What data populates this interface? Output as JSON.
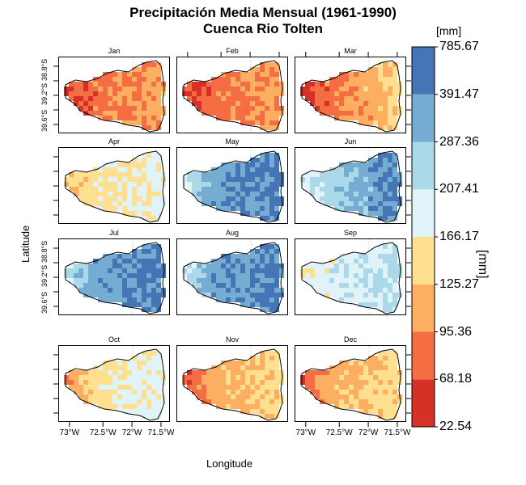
{
  "chart_data": {
    "type": "heatmap",
    "title_line1": "Precipitación Media Mensual (1961-1990)",
    "title_line2": "Cuenca Rio Tolten",
    "xlabel": "Longitude",
    "ylabel": "Latitude",
    "x_ticks": [
      "73°W",
      "72.5°W",
      "72°W",
      "71.5°W"
    ],
    "y_ticks": [
      "38.8°S",
      "39.2°S",
      "39.6°S"
    ],
    "colorbar": {
      "unit": "[mm]",
      "title": "[mm]",
      "breaks": [
        "22.54",
        "68.18",
        "95.36",
        "125.27",
        "166.17",
        "207.41",
        "287.36",
        "391.47",
        "785.67"
      ],
      "colors": [
        "#d73027",
        "#f46d43",
        "#fdae61",
        "#fee090",
        "#e0f3f8",
        "#abd9e9",
        "#74add1",
        "#4575b4"
      ]
    },
    "panels": [
      {
        "month": "Jan",
        "west": 0,
        "east": 2,
        "mid": 1
      },
      {
        "month": "Feb",
        "west": 0,
        "east": 2,
        "mid": 1
      },
      {
        "month": "Mar",
        "west": 0,
        "east": 3,
        "mid": 1
      },
      {
        "month": "Apr",
        "west": 2,
        "east": 4,
        "mid": 3
      },
      {
        "month": "May",
        "west": 4,
        "east": 7,
        "mid": 6
      },
      {
        "month": "Jun",
        "west": 4,
        "east": 7,
        "mid": 5
      },
      {
        "month": "Jul",
        "west": 4,
        "east": 7,
        "mid": 6
      },
      {
        "month": "Aug",
        "west": 4,
        "east": 7,
        "mid": 6
      },
      {
        "month": "Sep",
        "west": 3,
        "east": 5,
        "mid": 4
      },
      {
        "month": "Oct",
        "west": 1,
        "east": 4,
        "mid": 3
      },
      {
        "month": "Nov",
        "west": 0,
        "east": 3,
        "mid": 2
      },
      {
        "month": "Dec",
        "west": 0,
        "east": 3,
        "mid": 2
      }
    ]
  }
}
